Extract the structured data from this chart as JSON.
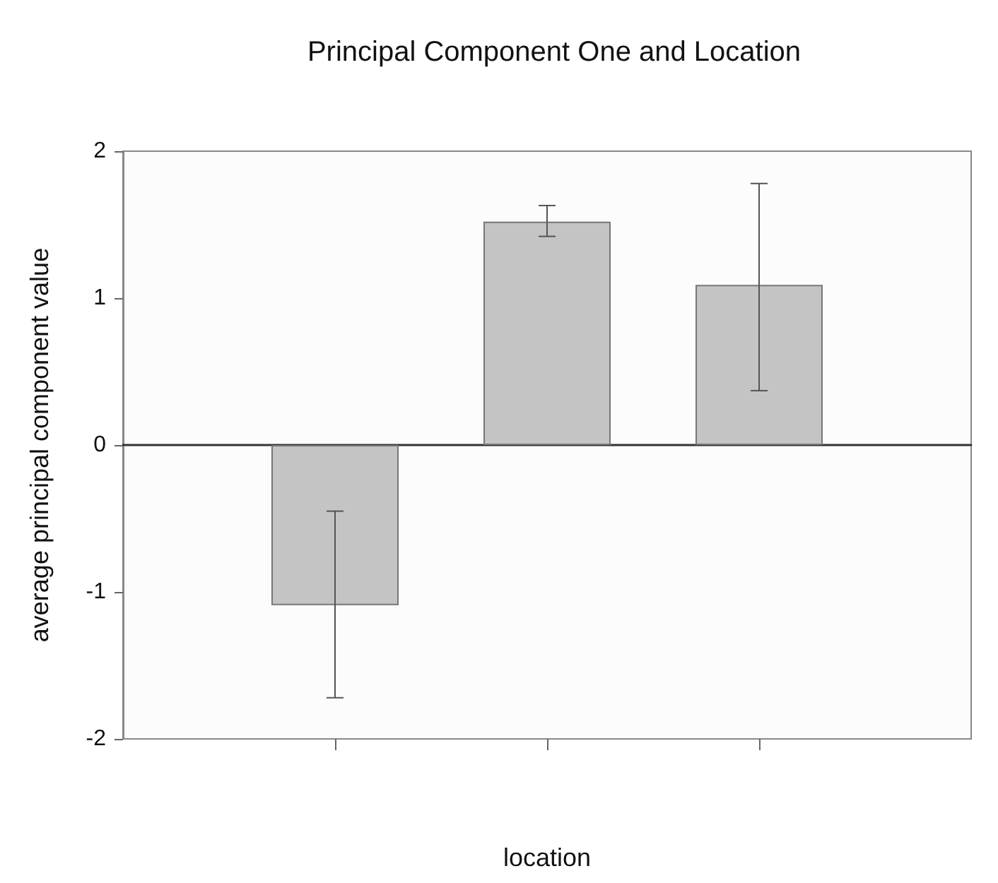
{
  "chart_data": {
    "type": "bar",
    "title": "Principal Component One and Location",
    "xlabel": "location",
    "ylabel": "average principal component value",
    "categories": [
      null,
      null,
      null
    ],
    "values": [
      -1.09,
      1.52,
      1.09
    ],
    "errors": [
      [
        -1.72,
        -0.45
      ],
      [
        1.42,
        1.63
      ],
      [
        0.37,
        1.78
      ]
    ],
    "color": "#c4c4c4",
    "ylim": [
      -2,
      2
    ],
    "yticks": [
      -2,
      -1,
      0,
      1,
      2
    ],
    "tick_labels": "y"
  }
}
